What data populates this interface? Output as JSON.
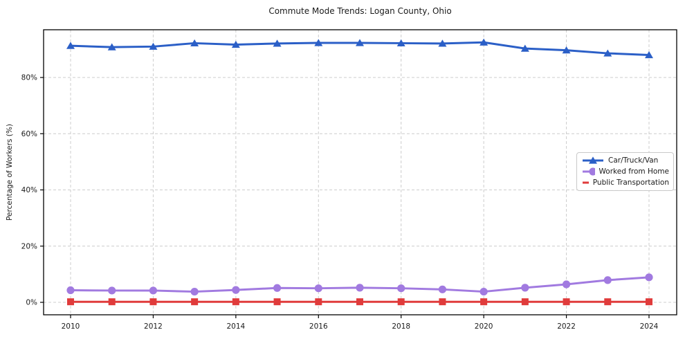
{
  "title": "Commute Mode Trends: Logan County, Ohio",
  "chart_data": {
    "type": "line",
    "title": "Commute Mode Trends: Logan County, Ohio",
    "xlabel": "",
    "ylabel": "Percentage of Workers (%)",
    "x": [
      2010,
      2011,
      2012,
      2013,
      2014,
      2015,
      2016,
      2017,
      2018,
      2019,
      2020,
      2021,
      2022,
      2023,
      2024
    ],
    "series": [
      {
        "name": "Car/Truck/Van",
        "color": "#2b5fc7",
        "marker": "triangle",
        "values": [
          91.3,
          90.8,
          91.0,
          92.2,
          91.7,
          92.1,
          92.3,
          92.3,
          92.2,
          92.1,
          92.5,
          90.3,
          89.7,
          88.6,
          88.0
        ]
      },
      {
        "name": "Worked from Home",
        "color": "#a17ae0",
        "marker": "circle",
        "values": [
          4.3,
          4.2,
          4.2,
          3.8,
          4.4,
          5.1,
          5.0,
          5.2,
          5.0,
          4.6,
          3.8,
          5.2,
          6.4,
          7.9,
          8.9
        ]
      },
      {
        "name": "Public Transportation",
        "color": "#e03b3b",
        "marker": "square",
        "values": [
          0.2,
          0.2,
          0.2,
          0.2,
          0.2,
          0.2,
          0.2,
          0.2,
          0.2,
          0.2,
          0.2,
          0.2,
          0.2,
          0.2,
          0.2
        ]
      }
    ],
    "xticks": [
      2010,
      2012,
      2014,
      2016,
      2018,
      2020,
      2022,
      2024
    ],
    "xtick_labels": [
      "2010",
      "2012",
      "2014",
      "2016",
      "2018",
      "2020",
      "2022",
      "2024"
    ],
    "yticks": [
      0,
      20,
      40,
      60,
      80
    ],
    "ytick_labels": [
      "0%",
      "20%",
      "40%",
      "60%",
      "80%"
    ],
    "ylim": [
      -4.4,
      97.0
    ],
    "xlim": [
      2009.35,
      2024.65
    ],
    "grid": true,
    "grid_style": "dashed",
    "legend_position": "center-right",
    "colors": {
      "axis": "#000000",
      "grid": "#cccccc",
      "text": "#1a1a1a"
    }
  }
}
